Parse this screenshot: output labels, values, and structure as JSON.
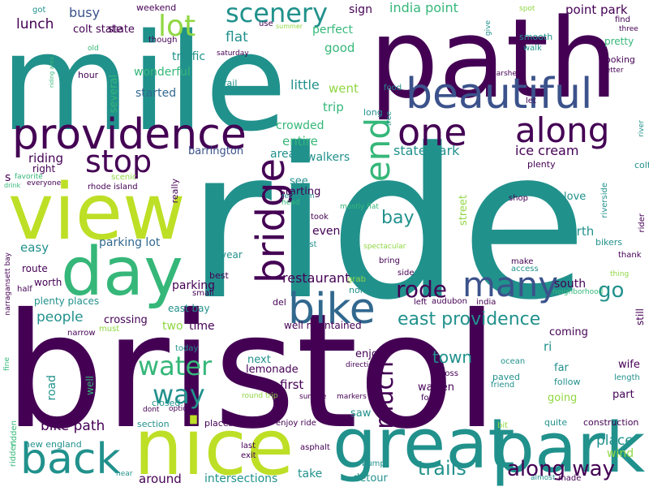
{
  "palette": {
    "dark_purple": "#440154",
    "indigo": "#3b528b",
    "blue": "#31688e",
    "teal": "#21918c",
    "green": "#35b779",
    "lime": "#90d743",
    "yellow": "#bddf26"
  },
  "words": [
    "ride",
    "bristol",
    "mile",
    "path",
    "nice",
    "view",
    "great",
    "park",
    "day",
    "providence",
    "beautiful",
    "bike",
    "back",
    "one",
    "along",
    "many",
    "bridge",
    "end",
    "stop",
    "scenery",
    "lot",
    "water",
    "way",
    "along way",
    "trails",
    "town",
    "much",
    "bay",
    "rode",
    "go",
    "east providence",
    "ice cream",
    "state park",
    "restaurant",
    "people",
    "bike path",
    "parking lot",
    "lunch",
    "busy",
    "colt state",
    "india point",
    "point park",
    "flat",
    "traffic",
    "wonderful",
    "started",
    "riding",
    "barrington",
    "area",
    "walkers",
    "entire",
    "crowded",
    "trip",
    "went",
    "good",
    "perfect",
    "sign",
    "little",
    "starting",
    "even",
    "see",
    "north",
    "love",
    "place",
    "wind",
    "south",
    "road",
    "saw",
    "enjoy",
    "detour",
    "around",
    "take",
    "intersections",
    "first",
    "next",
    "lemonade",
    "ri",
    "far",
    "wife",
    "part",
    "coming",
    "well maintained",
    "crossing",
    "two",
    "time",
    "east bay",
    "parking",
    "plenty places",
    "worth",
    "route",
    "easy",
    "right",
    "riding area",
    "favorite",
    "drink",
    "everyone",
    "scenic",
    "rhode island",
    "head",
    "restroom",
    "mostly flat",
    "took",
    "bring",
    "spectacular",
    "cyclist",
    "make",
    "access",
    "bikers",
    "thank",
    "rider",
    "riverside",
    "colt",
    "plenty",
    "shop",
    "street",
    "year",
    "best",
    "grab",
    "side",
    "northern",
    "left",
    "audubon",
    "india",
    "neighborhood",
    "thing",
    "still",
    "length",
    "follow",
    "going",
    "paved",
    "friend",
    "found",
    "cross",
    "direction",
    "markers",
    "surface",
    "enjoy ride",
    "places stop",
    "round trip",
    "option",
    "closed",
    "dont",
    "section",
    "today",
    "must",
    "narrow",
    "new england",
    "ridden",
    "fine",
    "half",
    "narragansett bay",
    "last",
    "exit",
    "asphalt",
    "bumps",
    "almost",
    "made",
    "near",
    "bit",
    "quite",
    "construction",
    "ocean",
    "warren",
    "state",
    "weekend",
    "got",
    "summer",
    "use",
    "spot",
    "give",
    "smooth",
    "walk",
    "find",
    "three",
    "pretty",
    "looking",
    "better",
    "hour",
    "old",
    "though",
    "saturday",
    "rail",
    "food",
    "long",
    "tree",
    "let",
    "marshes",
    "river",
    "several",
    "small",
    "del",
    "really",
    "s",
    "well",
    "ridden"
  ]
}
